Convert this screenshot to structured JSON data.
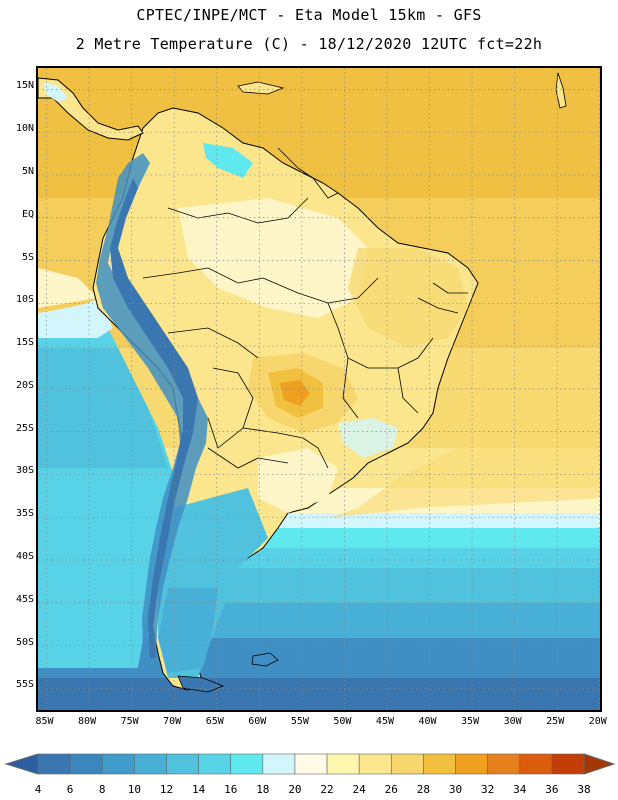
{
  "header": {
    "line1": "CPTEC/INPE/MCT -  Eta Model 15km - GFS",
    "line2": "2 Metre Temperature (C) - 18/12/2020 12UTC fct=22h"
  },
  "map": {
    "lat_labels": [
      "15N",
      "10N",
      "5N",
      "EQ",
      "5S",
      "10S",
      "15S",
      "20S",
      "25S",
      "30S",
      "35S",
      "40S",
      "45S",
      "50S",
      "55S"
    ],
    "lon_labels": [
      "85W",
      "80W",
      "75W",
      "70W",
      "65W",
      "60W",
      "55W",
      "50W",
      "45W",
      "40W",
      "35W",
      "30W",
      "25W",
      "20W"
    ],
    "lat_range": [
      17.5,
      -58
    ],
    "lon_range": [
      -86,
      -19.5
    ],
    "grid": true,
    "grid_style": "dotted"
  },
  "colorbar": {
    "labels": [
      "4",
      "6",
      "8",
      "10",
      "12",
      "14",
      "16",
      "18",
      "20",
      "22",
      "24",
      "26",
      "28",
      "30",
      "32",
      "34",
      "36",
      "38"
    ],
    "colors": [
      "#3a76b0",
      "#3a86bf",
      "#3f9ccb",
      "#48b0d6",
      "#51c2dd",
      "#58d2e6",
      "#60e8ef",
      "#d2f6fb",
      "#fffbe6",
      "#fef6ad",
      "#fbe78e",
      "#f7d66d",
      "#f0c03e",
      "#eea01e",
      "#e6801c",
      "#db5c0c",
      "#c23e06"
    ],
    "low_color": "#2b5f9f",
    "high_color": "#a33708"
  }
}
